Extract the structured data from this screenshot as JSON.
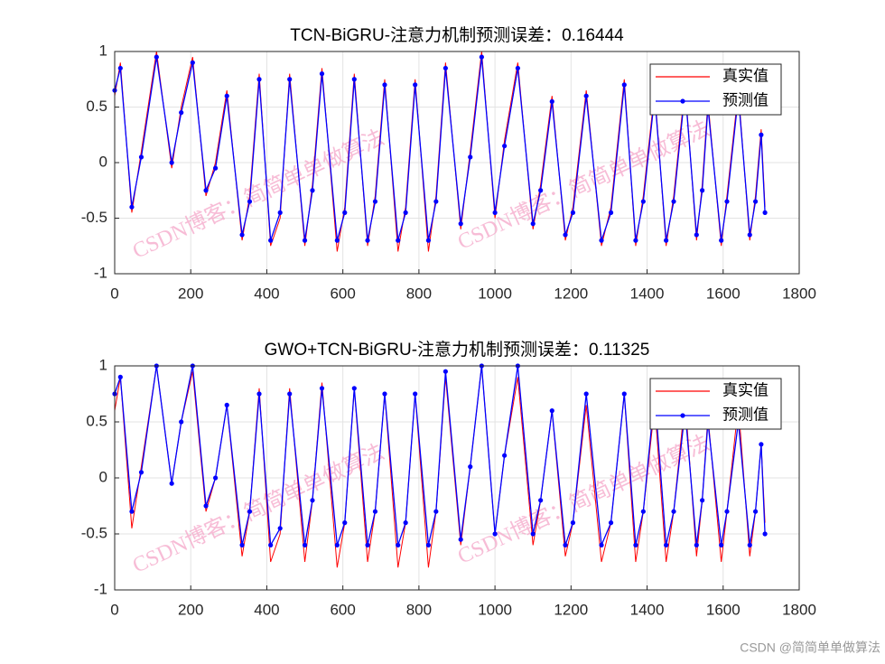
{
  "chart_data": [
    {
      "type": "line",
      "title": "TCN-BiGRU-注意力机制预测误差：0.16444",
      "x": [
        0,
        15,
        45,
        70,
        110,
        150,
        175,
        205,
        240,
        265,
        295,
        335,
        355,
        380,
        410,
        435,
        460,
        500,
        520,
        545,
        585,
        605,
        630,
        665,
        685,
        710,
        745,
        765,
        790,
        825,
        845,
        870,
        910,
        935,
        965,
        1000,
        1025,
        1060,
        1100,
        1120,
        1150,
        1185,
        1205,
        1240,
        1280,
        1305,
        1340,
        1370,
        1390,
        1420,
        1450,
        1470,
        1500,
        1530,
        1545,
        1560,
        1595,
        1610,
        1640,
        1670,
        1685,
        1700,
        1710
      ],
      "series": [
        {
          "name": "真实值",
          "color": "#ff0000",
          "values": [
            0.6,
            0.9,
            -0.45,
            0.1,
            1.0,
            -0.05,
            0.5,
            0.95,
            -0.3,
            0.0,
            0.65,
            -0.7,
            -0.3,
            0.8,
            -0.75,
            -0.5,
            0.8,
            -0.75,
            -0.2,
            0.85,
            -0.8,
            -0.4,
            0.8,
            -0.75,
            -0.3,
            0.75,
            -0.8,
            -0.4,
            0.75,
            -0.8,
            -0.3,
            0.9,
            -0.6,
            0.1,
            1.0,
            -0.5,
            0.2,
            0.9,
            -0.6,
            -0.2,
            0.6,
            -0.7,
            -0.4,
            0.65,
            -0.75,
            -0.4,
            0.75,
            -0.75,
            -0.3,
            0.65,
            -0.75,
            -0.3,
            0.7,
            -0.7,
            -0.2,
            0.55,
            -0.75,
            -0.3,
            0.65,
            -0.7,
            -0.3,
            0.3,
            -0.4
          ]
        },
        {
          "name": "预测值",
          "color": "#0000ff",
          "values": [
            0.65,
            0.85,
            -0.4,
            0.05,
            0.95,
            0.0,
            0.45,
            0.9,
            -0.25,
            -0.05,
            0.6,
            -0.65,
            -0.35,
            0.75,
            -0.7,
            -0.45,
            0.75,
            -0.7,
            -0.25,
            0.8,
            -0.7,
            -0.45,
            0.75,
            -0.7,
            -0.35,
            0.7,
            -0.7,
            -0.45,
            0.7,
            -0.7,
            -0.35,
            0.85,
            -0.55,
            0.05,
            0.95,
            -0.45,
            0.15,
            0.85,
            -0.55,
            -0.25,
            0.55,
            -0.65,
            -0.45,
            0.6,
            -0.7,
            -0.45,
            0.7,
            -0.7,
            -0.35,
            0.6,
            -0.7,
            -0.35,
            0.65,
            -0.65,
            -0.25,
            0.5,
            -0.7,
            -0.35,
            0.6,
            -0.65,
            -0.35,
            0.25,
            -0.45
          ]
        }
      ],
      "xlim": [
        0,
        1800
      ],
      "xticks": [
        0,
        200,
        400,
        600,
        800,
        1000,
        1200,
        1400,
        1600,
        1800
      ],
      "ylim": [
        -1,
        1
      ],
      "yticks": [
        -1,
        -0.5,
        0,
        0.5,
        1
      ],
      "grid": true,
      "legend": "northeast"
    },
    {
      "type": "line",
      "title": "GWO+TCN-BiGRU-注意力机制预测误差：0.11325",
      "x": [
        0,
        15,
        45,
        70,
        110,
        150,
        175,
        205,
        240,
        265,
        295,
        335,
        355,
        380,
        410,
        435,
        460,
        500,
        520,
        545,
        585,
        605,
        630,
        665,
        685,
        710,
        745,
        765,
        790,
        825,
        845,
        870,
        910,
        935,
        965,
        1000,
        1025,
        1060,
        1100,
        1120,
        1150,
        1185,
        1205,
        1240,
        1280,
        1305,
        1340,
        1370,
        1390,
        1420,
        1450,
        1470,
        1500,
        1530,
        1545,
        1560,
        1595,
        1610,
        1640,
        1670,
        1685,
        1700,
        1710
      ],
      "series": [
        {
          "name": "真实值",
          "color": "#ff0000",
          "values": [
            0.6,
            0.9,
            -0.45,
            0.1,
            1.0,
            -0.05,
            0.5,
            0.95,
            -0.3,
            0.0,
            0.65,
            -0.7,
            -0.3,
            0.8,
            -0.75,
            -0.5,
            0.8,
            -0.75,
            -0.2,
            0.85,
            -0.8,
            -0.4,
            0.8,
            -0.75,
            -0.3,
            0.75,
            -0.8,
            -0.4,
            0.75,
            -0.8,
            -0.3,
            0.9,
            -0.6,
            0.1,
            1.0,
            -0.5,
            0.2,
            0.9,
            -0.6,
            -0.2,
            0.6,
            -0.7,
            -0.4,
            0.65,
            -0.75,
            -0.4,
            0.75,
            -0.75,
            -0.3,
            0.65,
            -0.75,
            -0.3,
            0.7,
            -0.7,
            -0.2,
            0.55,
            -0.75,
            -0.3,
            0.65,
            -0.7,
            -0.3,
            0.3,
            -0.4
          ]
        },
        {
          "name": "预测值",
          "color": "#0000ff",
          "values": [
            0.75,
            0.9,
            -0.3,
            0.05,
            1.0,
            -0.05,
            0.5,
            1.0,
            -0.25,
            0.0,
            0.65,
            -0.6,
            -0.3,
            0.75,
            -0.6,
            -0.45,
            0.75,
            -0.6,
            -0.2,
            0.8,
            -0.6,
            -0.4,
            0.8,
            -0.6,
            -0.3,
            0.75,
            -0.6,
            -0.4,
            0.75,
            -0.6,
            -0.3,
            0.95,
            -0.55,
            0.1,
            1.0,
            -0.5,
            0.2,
            1.0,
            -0.5,
            -0.2,
            0.6,
            -0.6,
            -0.4,
            0.75,
            -0.6,
            -0.4,
            0.75,
            -0.6,
            -0.3,
            0.75,
            -0.6,
            -0.3,
            0.6,
            -0.6,
            -0.2,
            0.5,
            -0.6,
            -0.3,
            0.5,
            -0.6,
            -0.3,
            0.3,
            -0.5
          ]
        }
      ],
      "xlim": [
        0,
        1800
      ],
      "xticks": [
        0,
        200,
        400,
        600,
        800,
        1000,
        1200,
        1400,
        1600,
        1800
      ],
      "ylim": [
        -1,
        1
      ],
      "yticks": [
        -1,
        -0.5,
        0,
        0.5,
        1
      ],
      "grid": true,
      "legend": "northeast"
    }
  ],
  "watermark": "CSDN博客：简简单单做算法",
  "footer": "CSDN @简简单单做算法"
}
